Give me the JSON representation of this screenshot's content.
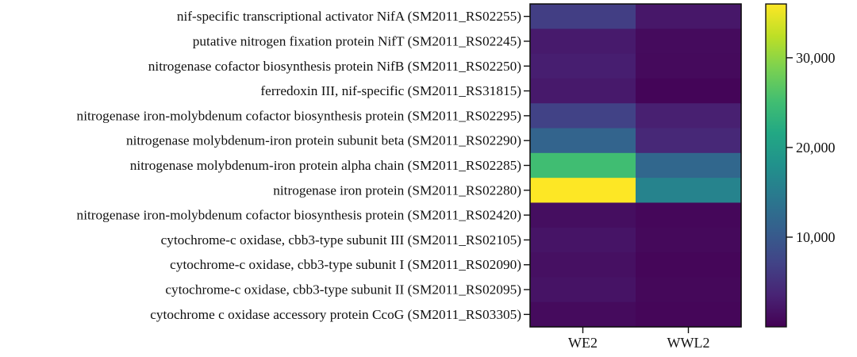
{
  "chart_data": {
    "type": "heatmap",
    "title": "",
    "xlabel": "",
    "ylabel": "",
    "columns": [
      "WE2",
      "WWL2"
    ],
    "rows": [
      "nif-specific transcriptional activator NifA (SM2011_RS02255)",
      "putative nitrogen fixation protein NifT (SM2011_RS02245)",
      "nitrogenase cofactor biosynthesis protein NifB (SM2011_RS02250)",
      "ferredoxin III, nif-specific (SM2011_RS31815)",
      "nitrogenase iron-molybdenum cofactor biosynthesis protein (SM2011_RS02295)",
      "nitrogenase molybdenum-iron protein subunit beta (SM2011_RS02290)",
      "nitrogenase molybdenum-iron protein alpha chain (SM2011_RS02285)",
      "nitrogenase iron protein (SM2011_RS02280)",
      "nitrogenase iron-molybdenum cofactor biosynthesis protein (SM2011_RS02420)",
      "cytochrome-c oxidase, cbb3-type subunit III (SM2011_RS02105)",
      "cytochrome-c oxidase, cbb3-type subunit I (SM2011_RS02090)",
      "cytochrome-c oxidase, cbb3-type subunit II (SM2011_RS02095)",
      "cytochrome c oxidase accessory protein CcoG (SM2011_RS03305)"
    ],
    "values": [
      [
        6500,
        2300
      ],
      [
        2600,
        1000
      ],
      [
        3000,
        900
      ],
      [
        2500,
        400
      ],
      [
        7000,
        3200
      ],
      [
        11500,
        4000
      ],
      [
        25000,
        12000
      ],
      [
        36000,
        16000
      ],
      [
        1300,
        600
      ],
      [
        2000,
        800
      ],
      [
        1500,
        500
      ],
      [
        1800,
        700
      ],
      [
        1000,
        500
      ]
    ],
    "colorbar": {
      "min": 0,
      "max": 36000,
      "ticks": [
        10000,
        20000,
        30000
      ],
      "tick_labels": [
        "10,000",
        "20,000",
        "30,000"
      ],
      "colormap": "viridis"
    }
  }
}
